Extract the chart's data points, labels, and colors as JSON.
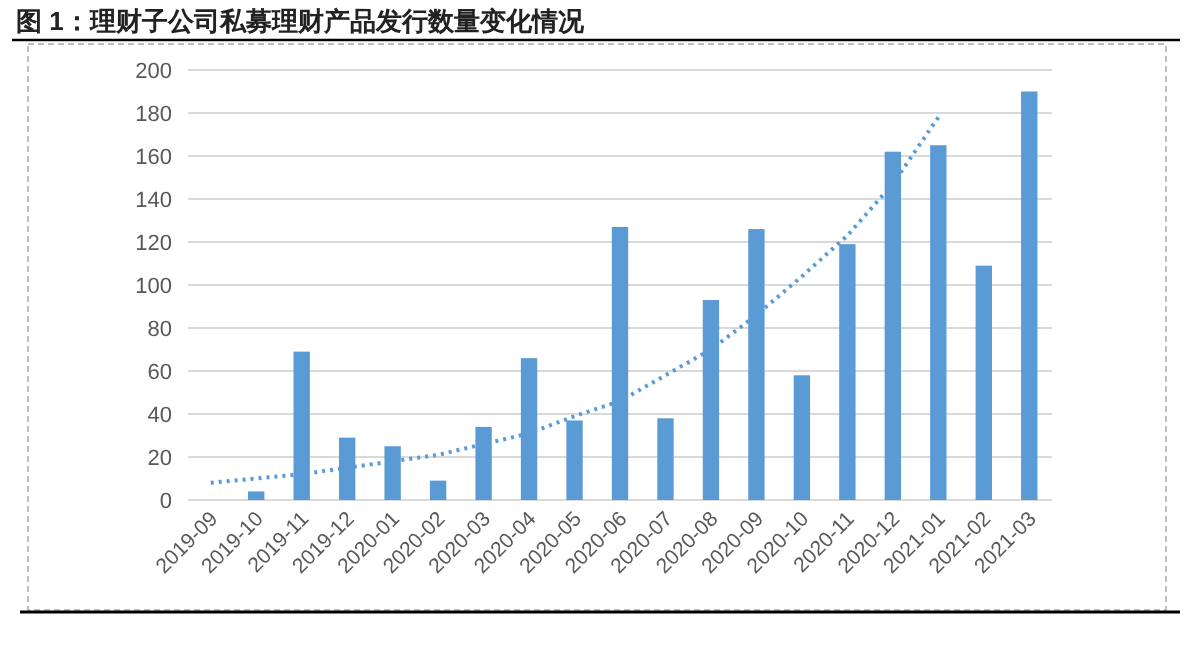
{
  "chart_data": {
    "type": "bar",
    "title": "图 1：理财子公司私募理财产品发行数量变化情况",
    "categories": [
      "2019-09",
      "2019-10",
      "2019-11",
      "2019-12",
      "2020-01",
      "2020-02",
      "2020-03",
      "2020-04",
      "2020-05",
      "2020-06",
      "2020-07",
      "2020-08",
      "2020-09",
      "2020-10",
      "2020-11",
      "2020-12",
      "2021-01",
      "2021-02",
      "2021-03"
    ],
    "series": [
      {
        "color": "#5b9bd5",
        "values": [
          0,
          4,
          69,
          29,
          25,
          9,
          34,
          66,
          37,
          127,
          38,
          93,
          126,
          58,
          119,
          162,
          165,
          109,
          190
        ]
      },
      {
        "type": "line",
        "color": "#5b9bd5",
        "line_style": "dotted",
        "values": [
          8,
          10,
          12,
          15,
          18,
          21,
          26,
          31,
          39,
          46,
          58,
          70,
          86,
          104,
          123,
          147,
          178,
          null,
          null
        ]
      }
    ],
    "ylim": [
      0,
      200
    ],
    "yticks": [
      0,
      20,
      40,
      60,
      80,
      100,
      120,
      140,
      160,
      180,
      200
    ],
    "grid": "y"
  }
}
